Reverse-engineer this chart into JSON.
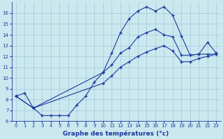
{
  "xlabel": "Graphe des températures (°c)",
  "background_color": "#cce8ef",
  "line_color": "#1a3a9e",
  "grid_color": "#a0c8d8",
  "xlim": [
    -0.5,
    23.5
  ],
  "ylim": [
    6,
    17
  ],
  "yticks": [
    6,
    7,
    8,
    9,
    10,
    11,
    12,
    13,
    14,
    15,
    16
  ],
  "xticks": [
    0,
    1,
    2,
    3,
    4,
    5,
    6,
    7,
    8,
    9,
    10,
    11,
    12,
    13,
    14,
    15,
    16,
    17,
    18,
    19,
    20,
    21,
    22,
    23
  ],
  "series1_x": [
    0,
    1,
    2,
    3,
    4,
    5,
    6,
    7,
    8,
    9,
    10,
    11,
    12,
    13,
    14,
    15,
    16,
    17,
    18,
    19,
    20,
    21,
    22,
    23
  ],
  "series1_y": [
    8.3,
    8.6,
    7.2,
    6.5,
    6.5,
    6.5,
    6.5,
    7.5,
    8.3,
    9.6,
    10.5,
    12.3,
    14.2,
    15.5,
    16.2,
    16.6,
    16.2,
    16.6,
    15.8,
    13.9,
    12.1,
    12.2,
    13.3,
    12.3
  ],
  "series2_x": [
    0,
    2,
    10,
    11,
    12,
    13,
    14,
    15,
    16,
    17,
    18,
    19,
    20,
    21,
    22,
    23
  ],
  "series2_y": [
    8.3,
    7.2,
    10.5,
    11.2,
    12.3,
    12.8,
    13.8,
    14.2,
    14.5,
    14.0,
    13.8,
    12.1,
    12.1,
    12.2,
    12.2,
    12.2
  ],
  "series3_x": [
    0,
    2,
    10,
    11,
    12,
    13,
    14,
    15,
    16,
    17,
    18,
    19,
    20,
    21,
    22,
    23
  ],
  "series3_y": [
    8.3,
    7.2,
    9.5,
    10.2,
    11.0,
    11.5,
    12.0,
    12.4,
    12.7,
    13.0,
    12.5,
    11.5,
    11.5,
    11.8,
    12.0,
    12.2
  ]
}
